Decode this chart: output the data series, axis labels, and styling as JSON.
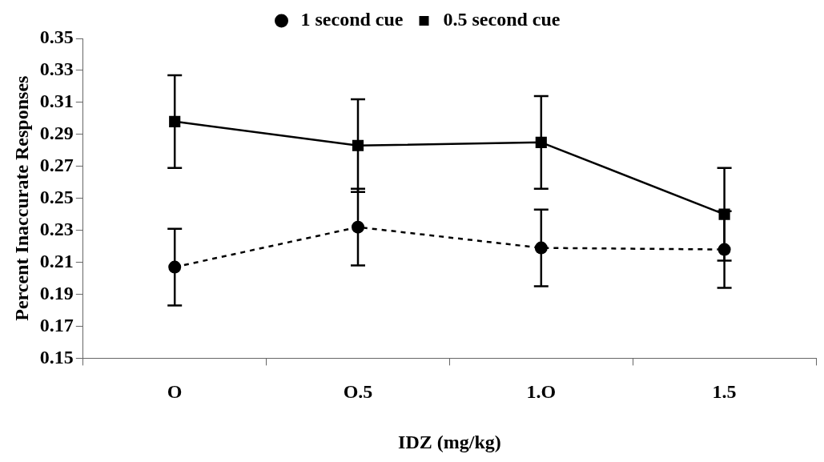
{
  "chart_data": {
    "type": "line",
    "xlabel": "IDZ (mg/kg)",
    "ylabel": "Percent Inaccurate Responses",
    "categories": [
      "O",
      "O.5",
      "1.O",
      "1.5"
    ],
    "series": [
      {
        "name": "1 second cue",
        "color": "#000000",
        "values": [
          0.207,
          0.232,
          0.219,
          0.218
        ],
        "errors": [
          0.024,
          0.024,
          0.024,
          0.024
        ],
        "marker": "circle",
        "line_style": "dashed"
      },
      {
        "name": "0.5 second cue",
        "color": "#000000",
        "values": [
          0.298,
          0.283,
          0.285,
          0.24
        ],
        "errors": [
          0.029,
          0.029,
          0.029,
          0.029
        ],
        "marker": "square",
        "line_style": "solid"
      }
    ],
    "ylim": [
      0.15,
      0.35
    ],
    "yticks": [
      0.15,
      0.17,
      0.19,
      0.21,
      0.23,
      0.25,
      0.27,
      0.29,
      0.31,
      0.33,
      0.35
    ],
    "grid": false,
    "legend": "top"
  }
}
